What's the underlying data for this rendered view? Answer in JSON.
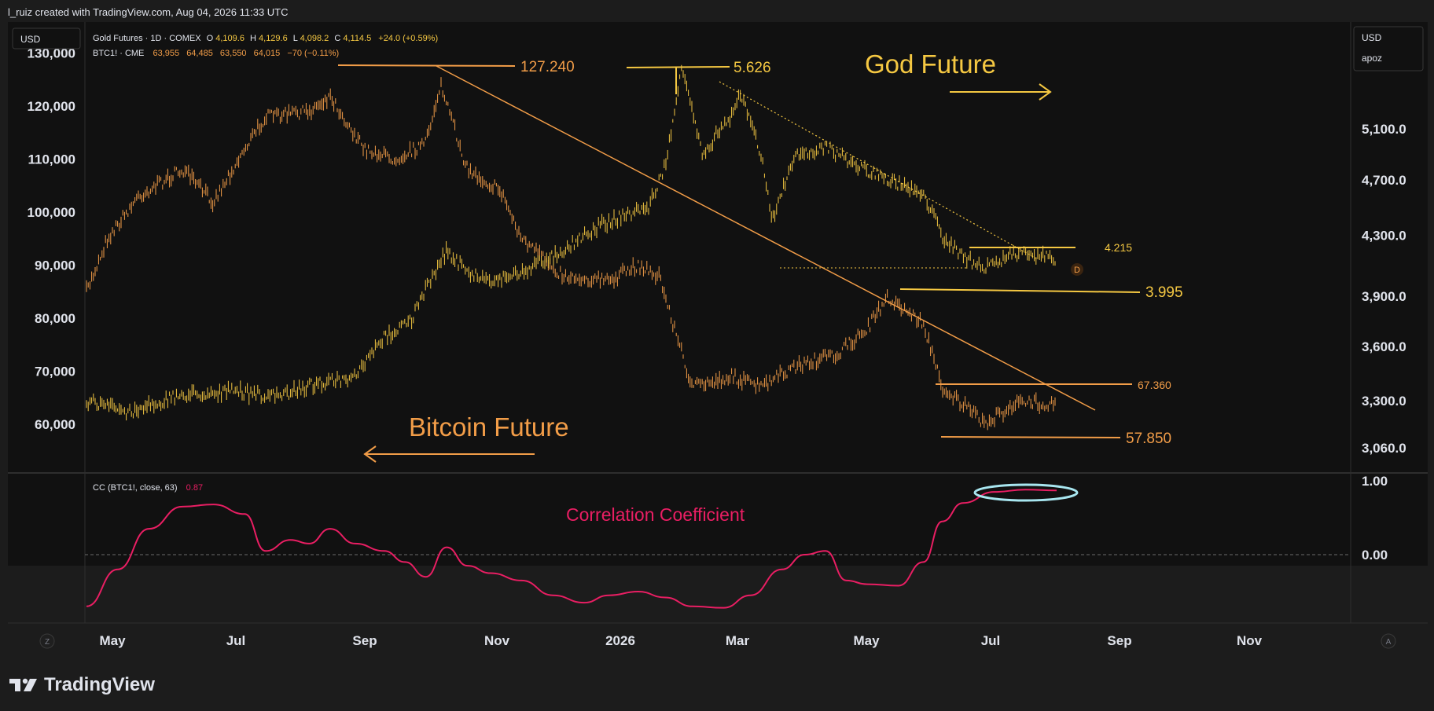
{
  "header": {
    "text": "l_ruiz created with TradingView.com, Aug 04, 2026 11:33 UTC"
  },
  "footer": {
    "brand": "TradingView"
  },
  "buttons": {
    "left_currency": "USD",
    "right_currency": "USD",
    "right_scale": "apoz",
    "z_button": "Z",
    "a_button": "A"
  },
  "legend": {
    "gold": {
      "name": "Gold Futures · 1D · COMEX",
      "o_lbl": "O",
      "o": "4,109.6",
      "h_lbl": "H",
      "h": "4,129.6",
      "l_lbl": "L",
      "l": "4,098.2",
      "c_lbl": "C",
      "c": "4,114.5",
      "chg": "+24.0 (+0.59%)"
    },
    "btc": {
      "name": "BTC1! · CME",
      "o": "63,955",
      "h": "64,485",
      "l": "63,550",
      "c": "64,015",
      "chg": "−70 (−0.11%)"
    },
    "cc": {
      "name": "CC (BTC1!, close, 63)",
      "value": "0.87"
    }
  },
  "colors": {
    "gold": "#f5c842",
    "btc": "#f29d48",
    "cc": "#e91e63",
    "ellipse": "#a8e6f0",
    "bg": "#111111",
    "outer_bg": "#1c1c1c"
  },
  "chart_data": [
    {
      "type": "line",
      "title": "Gold Futures · 1D · COMEX",
      "ylabel": "",
      "left_axis_ticks": [
        "130,000",
        "120,000",
        "110,000",
        "100,000",
        "90,000",
        "80,000",
        "70,000",
        "60,000"
      ],
      "right_axis_ticks": [
        "5,100.0",
        "4,700.0",
        "4,300.0",
        "3,900.0",
        "3,600.0",
        "3,300.0",
        "3,060.0"
      ],
      "x_ticks": [
        "May",
        "Jul",
        "Sep",
        "Nov",
        "2026",
        "Mar",
        "May",
        "Jul",
        "Sep",
        "Nov"
      ],
      "series": [
        {
          "name": "Gold Futures · 1D · COMEX",
          "x": [
            "2025-04-25",
            "2025-05-15",
            "2025-06-10",
            "2025-07-05",
            "2025-07-25",
            "2025-08-15",
            "2025-08-31",
            "2025-09-15",
            "2025-09-28",
            "2025-10-15",
            "2025-10-25",
            "2025-11-05",
            "2025-11-20",
            "2025-12-10",
            "2025-12-25",
            "2026-01-10",
            "2026-01-20",
            "2026-01-28",
            "2026-02-05",
            "2026-02-15",
            "2026-02-28",
            "2026-03-05",
            "2026-03-15",
            "2026-03-20",
            "2026-04-01",
            "2026-04-15",
            "2026-05-01",
            "2026-05-15",
            "2026-06-01",
            "2026-06-10",
            "2026-06-20",
            "2026-07-01",
            "2026-07-15",
            "2026-08-01",
            "2026-08-04"
          ],
          "values": [
            3300,
            3240,
            3330,
            3350,
            3320,
            3400,
            3410,
            3650,
            3760,
            4200,
            4050,
            4000,
            4050,
            4200,
            4350,
            4450,
            4500,
            4800,
            5600,
            4900,
            5200,
            5400,
            4900,
            4400,
            4900,
            4950,
            4800,
            4700,
            4600,
            4300,
            4150,
            4080,
            4180,
            4150,
            4114.5
          ]
        },
        {
          "name": "BTC1! · CME",
          "x": [
            "2025-04-25",
            "2025-05-05",
            "2025-05-20",
            "2025-06-10",
            "2025-06-25",
            "2025-07-10",
            "2025-07-20",
            "2025-08-10",
            "2025-08-20",
            "2025-09-05",
            "2025-09-20",
            "2025-10-05",
            "2025-10-12",
            "2025-10-25",
            "2025-11-10",
            "2025-11-20",
            "2025-12-10",
            "2026-01-01",
            "2026-01-15",
            "2026-01-25",
            "2026-02-03",
            "2026-02-10",
            "2026-03-01",
            "2026-03-15",
            "2026-04-01",
            "2026-04-20",
            "2026-05-05",
            "2026-05-15",
            "2026-06-01",
            "2026-06-10",
            "2026-06-25",
            "2026-07-01",
            "2026-07-15",
            "2026-08-04"
          ],
          "values": [
            85000,
            95000,
            103000,
            108000,
            102000,
            112000,
            118000,
            119000,
            122000,
            112000,
            110000,
            113000,
            124000,
            108000,
            104000,
            95000,
            88000,
            87000,
            90000,
            88000,
            76000,
            67000,
            69000,
            67000,
            71000,
            73000,
            78000,
            84000,
            79000,
            67000,
            62000,
            60000,
            64000,
            64015
          ]
        }
      ],
      "annotations": [
        "127.240",
        "5.626",
        "God Future",
        "4.215",
        "3.995",
        "67.360",
        "57.850",
        "Bitcoin Future",
        "D"
      ]
    },
    {
      "type": "line",
      "title": "CC (BTC1!, close, 63)",
      "ylabel": "",
      "right_axis_ticks": [
        "1.00",
        "0.00"
      ],
      "ylim": [
        -0.85,
        1.0
      ],
      "annotations": [
        "Correlation Coefficient"
      ],
      "series": [
        {
          "name": "CC (BTC1!, close, 63)",
          "x": [
            "2025-04-25",
            "2025-05-10",
            "2025-05-25",
            "2025-06-10",
            "2025-06-25",
            "2025-07-10",
            "2025-07-20",
            "2025-08-01",
            "2025-08-10",
            "2025-08-20",
            "2025-09-01",
            "2025-09-15",
            "2025-09-25",
            "2025-10-05",
            "2025-10-15",
            "2025-10-25",
            "2025-11-05",
            "2025-11-20",
            "2025-12-05",
            "2025-12-20",
            "2026-01-01",
            "2026-01-15",
            "2026-01-28",
            "2026-02-10",
            "2026-02-25",
            "2026-03-10",
            "2026-03-25",
            "2026-04-05",
            "2026-04-15",
            "2026-04-25",
            "2026-05-05",
            "2026-05-20",
            "2026-06-01",
            "2026-06-10",
            "2026-06-20",
            "2026-07-05",
            "2026-07-20",
            "2026-08-04"
          ],
          "values": [
            -0.7,
            -0.2,
            0.35,
            0.65,
            0.68,
            0.55,
            0.05,
            0.2,
            0.15,
            0.35,
            0.15,
            0.05,
            -0.1,
            -0.3,
            0.1,
            -0.15,
            -0.25,
            -0.35,
            -0.55,
            -0.65,
            -0.55,
            -0.5,
            -0.58,
            -0.7,
            -0.72,
            -0.55,
            -0.2,
            0.0,
            0.05,
            -0.35,
            -0.4,
            -0.42,
            -0.1,
            0.45,
            0.7,
            0.85,
            0.88,
            0.87
          ]
        }
      ]
    }
  ]
}
